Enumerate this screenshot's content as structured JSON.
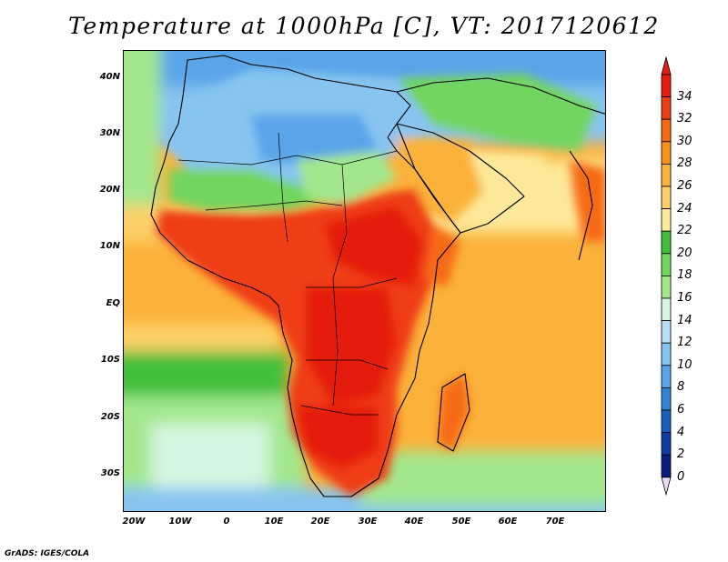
{
  "title": "Temperature at 1000hPa [C], VT: 2017120612",
  "credit": "GrADS: IGES/COLA",
  "axes": {
    "y_ticks": [
      "40N",
      "30N",
      "20N",
      "10N",
      "EQ",
      "10S",
      "20S",
      "30S"
    ],
    "x_ticks": [
      "20W",
      "10W",
      "0",
      "10E",
      "20E",
      "30E",
      "40E",
      "50E",
      "60E",
      "70E"
    ]
  },
  "colorbar": {
    "labels": [
      "34",
      "32",
      "30",
      "28",
      "26",
      "24",
      "22",
      "20",
      "18",
      "16",
      "14",
      "12",
      "10",
      "8",
      "6",
      "4",
      "2",
      "0"
    ],
    "colors_top_to_bottom": [
      "#e51e10",
      "#ef3e12",
      "#f66a14",
      "#fa9219",
      "#fbb23a",
      "#fcd067",
      "#fde99a",
      "#3fbf3a",
      "#72d55e",
      "#a3e78d",
      "#d5f6e0",
      "#b4dff6",
      "#87c5f0",
      "#5aa5e8",
      "#3482d8",
      "#1b5ec2",
      "#0e3ca4",
      "#0a1e80"
    ],
    "under_color": "#e8dcf5"
  },
  "regions": {
    "sahara_north": "cool blue (12-18 C)",
    "central_africa": "hot red (30-34 C)",
    "southern_africa": "hot red (30-34 C)",
    "equatorial_ocean": "orange (26-28 C)"
  }
}
